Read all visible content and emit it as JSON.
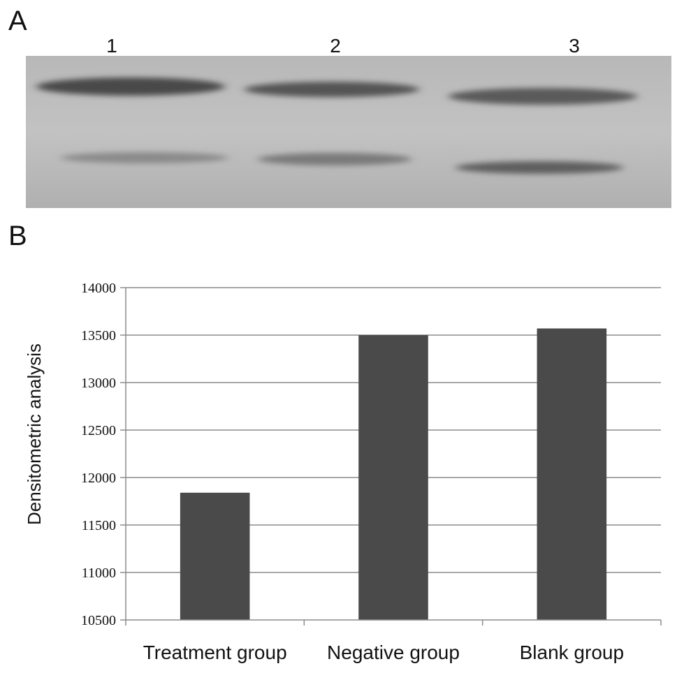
{
  "panels": {
    "a_label": "A",
    "b_label": "B"
  },
  "blot": {
    "lane_labels": [
      "1",
      "2",
      "3"
    ],
    "background_color": "#b4b4b4"
  },
  "chart_data": {
    "type": "bar",
    "categories": [
      "Treatment group",
      "Negative group",
      "Blank group"
    ],
    "values": [
      11840,
      13500,
      13570
    ],
    "title": "",
    "xlabel": "",
    "ylabel": "Densitometric analysis",
    "ylim": [
      10500,
      14000
    ],
    "yticks": [
      10500,
      11000,
      11500,
      12000,
      12500,
      13000,
      13500,
      14000
    ],
    "grid": true,
    "legend": "none",
    "bar_color": "#4a4a4a"
  }
}
